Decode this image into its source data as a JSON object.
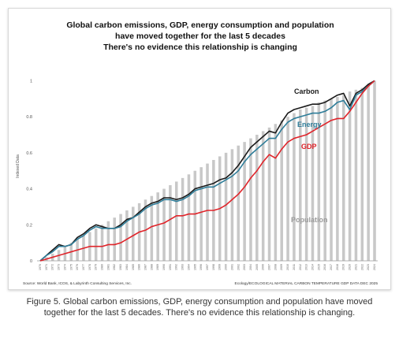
{
  "chart_data": {
    "type": "bar+line",
    "title_lines": [
      "Global carbon emissions, GDP, energy consumption and population",
      "have moved together for the last 5 decades",
      "There's no evidence this relationship is changing"
    ],
    "ylabel": "Indexed Data",
    "xlabel": "",
    "ylim": [
      0,
      1.05
    ],
    "yticks": [
      "0",
      "0.2",
      "0.4",
      "0.6",
      "0.8",
      "1"
    ],
    "ytick_values": [
      0,
      0.2,
      0.4,
      0.6,
      0.8,
      1.0
    ],
    "x_start": 1970,
    "x_end": 2024,
    "grid": false,
    "legend": "inline labels",
    "bar_series": {
      "name": "Population",
      "color": "#c8c8c8",
      "values": [
        0.0,
        0.02,
        0.04,
        0.06,
        0.08,
        0.1,
        0.12,
        0.14,
        0.16,
        0.18,
        0.2,
        0.22,
        0.24,
        0.26,
        0.28,
        0.3,
        0.32,
        0.34,
        0.36,
        0.38,
        0.4,
        0.42,
        0.44,
        0.46,
        0.48,
        0.5,
        0.52,
        0.54,
        0.56,
        0.58,
        0.6,
        0.62,
        0.64,
        0.66,
        0.68,
        0.7,
        0.72,
        0.74,
        0.76,
        0.78,
        0.8,
        0.82,
        0.84,
        0.85,
        0.86,
        0.88,
        0.89,
        0.9,
        0.91,
        0.92,
        0.94,
        0.95,
        0.96,
        0.98,
        1.0
      ]
    },
    "series": [
      {
        "name": "Carbon",
        "color": "#1a1a1a",
        "values": [
          0.0,
          0.03,
          0.06,
          0.09,
          0.08,
          0.09,
          0.13,
          0.15,
          0.18,
          0.2,
          0.19,
          0.18,
          0.18,
          0.2,
          0.23,
          0.24,
          0.27,
          0.3,
          0.32,
          0.33,
          0.35,
          0.35,
          0.34,
          0.35,
          0.37,
          0.4,
          0.41,
          0.42,
          0.43,
          0.45,
          0.46,
          0.49,
          0.53,
          0.58,
          0.63,
          0.66,
          0.69,
          0.72,
          0.71,
          0.77,
          0.82,
          0.84,
          0.85,
          0.86,
          0.87,
          0.87,
          0.88,
          0.9,
          0.92,
          0.93,
          0.86,
          0.93,
          0.95,
          0.98,
          1.0
        ]
      },
      {
        "name": "Energy",
        "color": "#2e7d99",
        "values": [
          0.0,
          0.03,
          0.05,
          0.08,
          0.08,
          0.09,
          0.12,
          0.14,
          0.17,
          0.19,
          0.18,
          0.18,
          0.18,
          0.19,
          0.22,
          0.24,
          0.26,
          0.29,
          0.31,
          0.32,
          0.34,
          0.34,
          0.33,
          0.34,
          0.36,
          0.39,
          0.4,
          0.41,
          0.41,
          0.43,
          0.45,
          0.47,
          0.5,
          0.55,
          0.59,
          0.62,
          0.65,
          0.68,
          0.68,
          0.73,
          0.77,
          0.79,
          0.8,
          0.81,
          0.82,
          0.82,
          0.83,
          0.85,
          0.88,
          0.89,
          0.84,
          0.92,
          0.94,
          0.97,
          1.0
        ]
      },
      {
        "name": "GDP",
        "color": "#e0242a",
        "values": [
          0.0,
          0.01,
          0.02,
          0.03,
          0.04,
          0.05,
          0.06,
          0.07,
          0.08,
          0.08,
          0.08,
          0.09,
          0.09,
          0.1,
          0.12,
          0.14,
          0.16,
          0.17,
          0.19,
          0.2,
          0.21,
          0.23,
          0.25,
          0.25,
          0.26,
          0.26,
          0.27,
          0.28,
          0.28,
          0.29,
          0.31,
          0.34,
          0.37,
          0.41,
          0.46,
          0.5,
          0.55,
          0.59,
          0.57,
          0.62,
          0.66,
          0.68,
          0.69,
          0.7,
          0.72,
          0.74,
          0.76,
          0.78,
          0.79,
          0.79,
          0.83,
          0.88,
          0.93,
          0.97,
          1.0
        ]
      }
    ],
    "source_left": "Source: World Bank, ICOS, & Labyrinth Consulting Services, Inc.",
    "source_right": "Ecology/ECOLOGICAL MATERIAL CARBON TEMPERATURE GDP DATA DEC 2025"
  },
  "caption": "Figure 5. Global carbon emissions, GDP, energy consumption and population have moved together for the last 5 decades. There's no evidence this relationship is changing."
}
